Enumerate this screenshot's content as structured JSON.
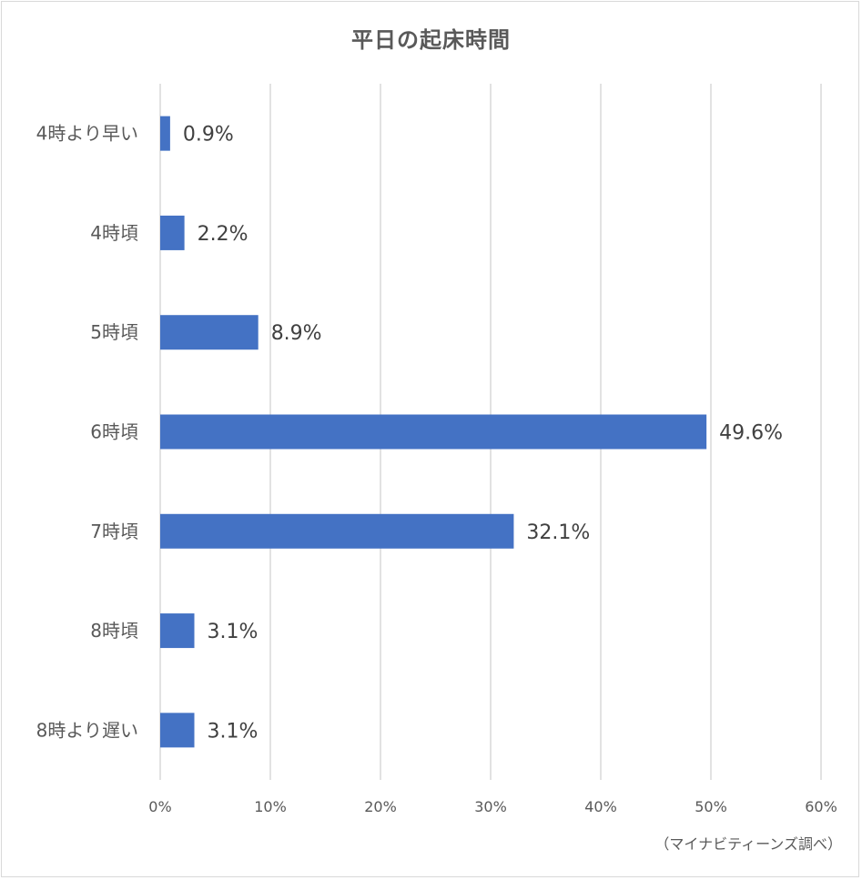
{
  "chart_data": {
    "type": "bar",
    "orientation": "horizontal",
    "title": "平日の起床時間",
    "categories": [
      "4時より早い",
      "4時頃",
      "5時頃",
      "6時頃",
      "7時頃",
      "8時頃",
      "8時より遅い"
    ],
    "values": [
      0.9,
      2.2,
      8.9,
      49.6,
      32.1,
      3.1,
      3.1
    ],
    "data_labels": [
      "0.9%",
      "2.2%",
      "8.9%",
      "49.6%",
      "32.1%",
      "3.1%",
      "3.1%"
    ],
    "xlim": [
      0,
      60
    ],
    "x_ticks": [
      0,
      10,
      20,
      30,
      40,
      50,
      60
    ],
    "x_tick_labels": [
      "0%",
      "10%",
      "20%",
      "30%",
      "40%",
      "50%",
      "60%"
    ],
    "xlabel": "",
    "ylabel": "",
    "grid": "vertical",
    "bar_color": "#4472c4",
    "grid_color": "#d9d9d9"
  },
  "source_note": "（マイナビティーンズ調べ）"
}
